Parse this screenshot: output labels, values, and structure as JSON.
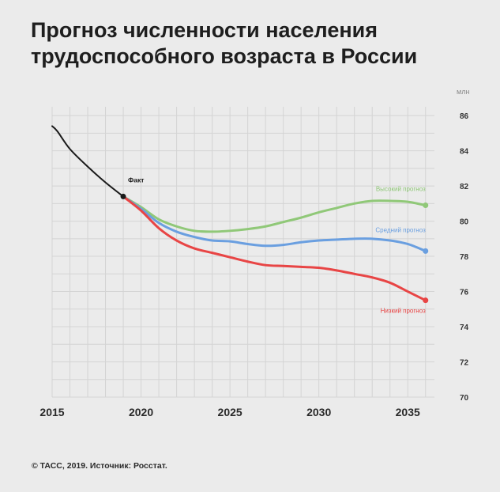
{
  "title": "Прогноз численности населения трудоспособного возраста в России",
  "source": "© ТАСС, 2019. Источник: Росстат.",
  "chart_data": {
    "type": "line",
    "title": "Прогноз численности населения трудоспособного возраста в России",
    "xlabel": "",
    "ylabel": "",
    "y_unit_label": "млн",
    "xlim": [
      2015,
      2036.5
    ],
    "ylim": [
      70,
      86.5
    ],
    "x_ticks": [
      2015,
      2020,
      2025,
      2030,
      2035
    ],
    "y_ticks": [
      70,
      72,
      74,
      76,
      78,
      80,
      82,
      84,
      86
    ],
    "y_axis_position": "right",
    "grid": true,
    "colors": {
      "fact": "#1a1a1a",
      "high": "#90c878",
      "medium": "#6a9fe0",
      "low": "#e84545",
      "grid": "#d4d4d4"
    },
    "series": [
      {
        "key": "fact",
        "name": "Факт",
        "x": [
          2015,
          2015.3,
          2016,
          2017,
          2018,
          2019
        ],
        "y": [
          85.4,
          85.1,
          84.1,
          83.1,
          82.2,
          81.4
        ]
      },
      {
        "key": "high",
        "name": "Высокий прогноз",
        "x": [
          2019,
          2020,
          2021,
          2022,
          2023,
          2024,
          2025,
          2026,
          2027,
          2028,
          2029,
          2030,
          2031,
          2032,
          2033,
          2034,
          2035,
          2036
        ],
        "y": [
          81.4,
          80.8,
          80.1,
          79.7,
          79.45,
          79.4,
          79.45,
          79.55,
          79.7,
          79.95,
          80.2,
          80.5,
          80.75,
          81.0,
          81.15,
          81.15,
          81.1,
          80.9
        ]
      },
      {
        "key": "medium",
        "name": "Средний прогноз",
        "x": [
          2019,
          2020,
          2021,
          2022,
          2023,
          2024,
          2025,
          2026,
          2027,
          2028,
          2029,
          2030,
          2031,
          2032,
          2033,
          2034,
          2035,
          2036
        ],
        "y": [
          81.4,
          80.7,
          79.9,
          79.4,
          79.1,
          78.9,
          78.85,
          78.7,
          78.6,
          78.65,
          78.8,
          78.9,
          78.95,
          79.0,
          79.0,
          78.9,
          78.7,
          78.3
        ]
      },
      {
        "key": "low",
        "name": "Низкий прогноз",
        "x": [
          2019,
          2020,
          2021,
          2022,
          2023,
          2024,
          2025,
          2026,
          2027,
          2028,
          2029,
          2030,
          2031,
          2032,
          2033,
          2034,
          2035,
          2036
        ],
        "y": [
          81.4,
          80.6,
          79.6,
          78.9,
          78.45,
          78.2,
          77.95,
          77.7,
          77.5,
          77.45,
          77.4,
          77.35,
          77.2,
          77.0,
          76.8,
          76.5,
          76.0,
          75.5
        ]
      }
    ]
  }
}
